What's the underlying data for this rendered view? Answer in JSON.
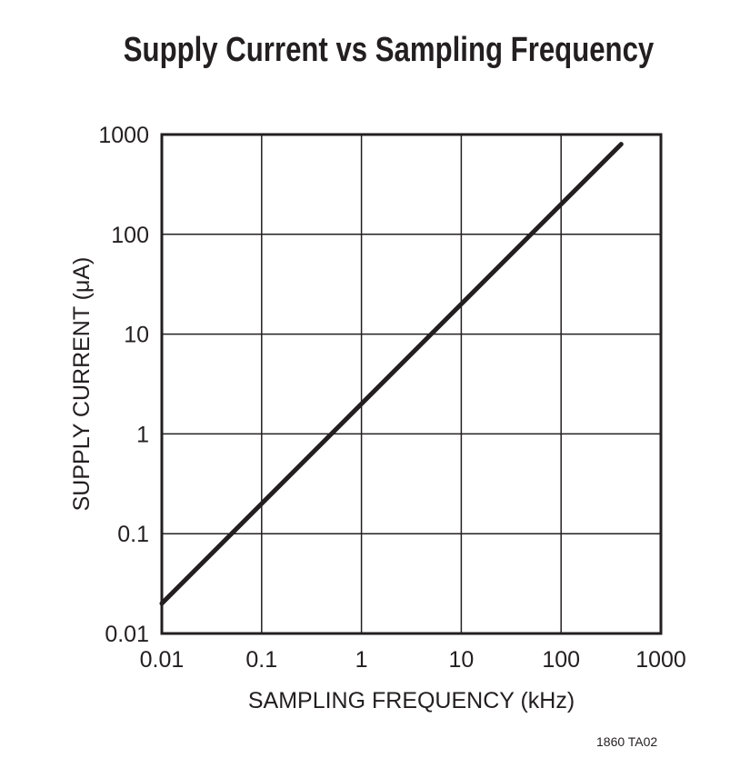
{
  "chart_data": {
    "type": "line",
    "title": "Supply Current vs Sampling Frequency",
    "xlabel": "SAMPLING FREQUENCY (kHz)",
    "ylabel": "SUPPLY CURRENT (μA)",
    "xscale": "log",
    "yscale": "log",
    "xlim": [
      0.01,
      1000
    ],
    "ylim": [
      0.01,
      1000
    ],
    "xticks": [
      "0.01",
      "0.1",
      "1",
      "10",
      "100",
      "1000"
    ],
    "yticks": [
      "0.01",
      "0.1",
      "1",
      "10",
      "100",
      "1000"
    ],
    "grid": true,
    "series": [
      {
        "x": [
          0.01,
          400
        ],
        "y": [
          0.02,
          800
        ],
        "color": "#231f20"
      }
    ]
  },
  "figure_id": "1860 TA02"
}
